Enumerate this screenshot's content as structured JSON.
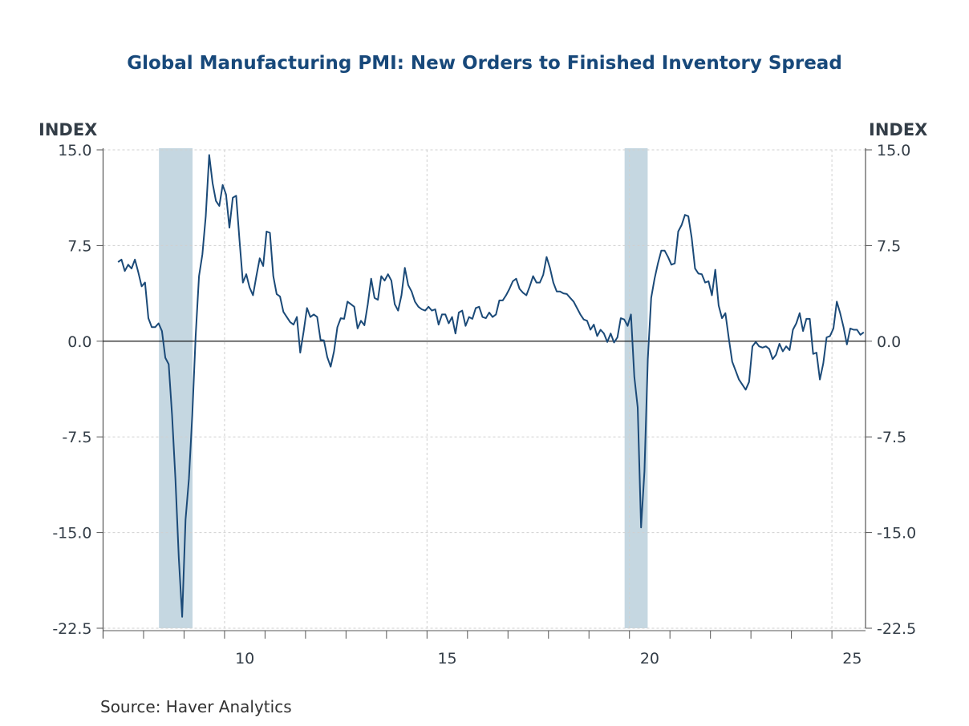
{
  "chart_data": {
    "type": "line",
    "title": "Global Manufacturing PMI: New Orders to Finished Inventory Spread",
    "ylabel_left": "INDEX",
    "ylabel_right": "INDEX",
    "xlabel": "",
    "source": "Source:  Haver Analytics",
    "ylim": [
      -22.5,
      15.0
    ],
    "yticks": [
      15.0,
      7.5,
      0.0,
      -7.5,
      -15.0,
      -22.5
    ],
    "ytick_labels": [
      "15.0",
      "7.5",
      "0.0",
      "-7.5",
      "-15.0",
      "-22.5"
    ],
    "xlim": [
      2007.0,
      2025.83
    ],
    "xticks_years": [
      2007,
      2008,
      2009,
      2010,
      2011,
      2012,
      2013,
      2014,
      2015,
      2016,
      2017,
      2018,
      2019,
      2020,
      2021,
      2022,
      2023,
      2024,
      2025
    ],
    "xtick_labels": [
      {
        "year": 2010,
        "label": "10"
      },
      {
        "year": 2015,
        "label": "15"
      },
      {
        "year": 2020,
        "label": "20"
      },
      {
        "year": 2025,
        "label": "25"
      }
    ],
    "recessions": [
      [
        2008.38,
        2009.21
      ],
      [
        2019.88,
        2020.45
      ]
    ],
    "grid": true,
    "colors": {
      "line": "#1b4a78",
      "recession": "#c5d7e1",
      "title": "#17487a",
      "grid": "#d0d0d0"
    },
    "series": [
      {
        "name": "New Orders to Finished Inventory Spread",
        "start": 2007.37,
        "frequency": "monthly",
        "values": [
          6.2,
          6.4,
          5.5,
          6.0,
          5.7,
          6.4,
          5.4,
          4.3,
          4.6,
          1.8,
          1.1,
          1.1,
          1.4,
          0.8,
          -1.3,
          -1.8,
          -5.8,
          -10.8,
          -17.0,
          -21.6,
          -14.0,
          -10.8,
          -5.8,
          0.4,
          5.1,
          6.8,
          9.8,
          14.6,
          12.4,
          11.0,
          10.6,
          12.25,
          11.5,
          8.9,
          11.25,
          11.4,
          7.9,
          4.6,
          5.25,
          4.2,
          3.6,
          5.1,
          6.5,
          5.9,
          8.6,
          8.5,
          5.1,
          3.7,
          3.5,
          2.3,
          1.9,
          1.5,
          1.3,
          1.9,
          -0.9,
          0.75,
          2.6,
          1.9,
          2.1,
          1.9,
          0.1,
          0.06,
          -1.25,
          -2.0,
          -0.8,
          1.1,
          1.8,
          1.75,
          3.1,
          2.9,
          2.7,
          1.0,
          1.6,
          1.25,
          2.9,
          4.9,
          3.4,
          3.25,
          5.1,
          4.75,
          5.25,
          4.75,
          2.9,
          2.4,
          3.6,
          5.75,
          4.4,
          3.9,
          3.1,
          2.7,
          2.5,
          2.4,
          2.7,
          2.4,
          2.5,
          1.3,
          2.1,
          2.1,
          1.4,
          1.9,
          0.6,
          2.25,
          2.4,
          1.2,
          1.9,
          1.75,
          2.6,
          2.7,
          1.9,
          1.8,
          2.25,
          1.9,
          2.1,
          3.2,
          3.2,
          3.6,
          4.1,
          4.7,
          4.9,
          4.1,
          3.8,
          3.6,
          4.3,
          5.1,
          4.6,
          4.6,
          5.2,
          6.6,
          5.75,
          4.6,
          3.9,
          3.9,
          3.75,
          3.7,
          3.4,
          3.1,
          2.6,
          2.1,
          1.7,
          1.6,
          0.9,
          1.3,
          0.4,
          0.9,
          0.6,
          -0.06,
          0.6,
          -0.1,
          0.3,
          1.8,
          1.7,
          1.2,
          2.1,
          -2.8,
          -5.2,
          -14.6,
          -10.2,
          -1.4,
          3.4,
          4.9,
          6.1,
          7.1,
          7.1,
          6.6,
          6.0,
          6.1,
          8.6,
          9.1,
          9.9,
          9.8,
          8.1,
          5.7,
          5.3,
          5.25,
          4.6,
          4.7,
          3.6,
          5.6,
          2.8,
          1.8,
          2.2,
          0.2,
          -1.6,
          -2.3,
          -3.0,
          -3.4,
          -3.8,
          -3.2,
          -0.4,
          -0.06,
          -0.4,
          -0.5,
          -0.4,
          -0.6,
          -1.4,
          -1.06,
          -0.2,
          -0.8,
          -0.4,
          -0.7,
          0.9,
          1.4,
          2.2,
          0.8,
          1.75,
          1.75,
          -1.0,
          -0.9,
          -3.0,
          -1.75,
          0.3,
          0.4,
          1.0,
          3.1,
          2.2,
          1.1,
          -0.25,
          1.0,
          0.9,
          0.9,
          0.5,
          0.7
        ]
      }
    ]
  }
}
